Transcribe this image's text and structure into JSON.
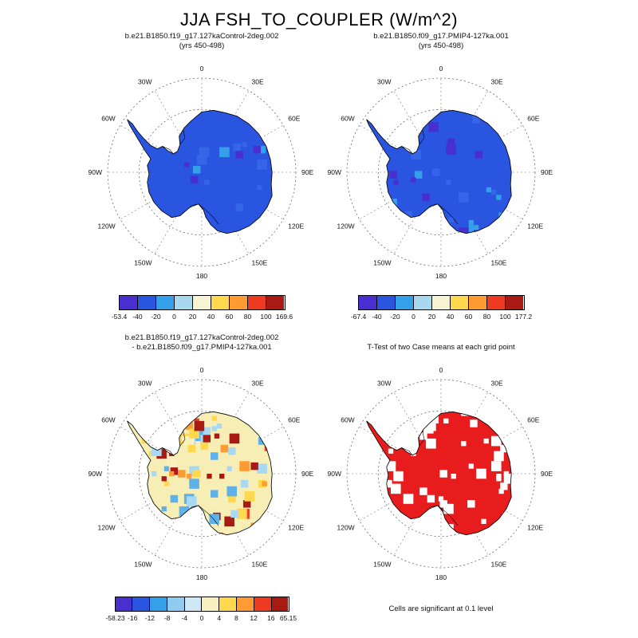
{
  "page_title": "JJA FSH_TO_COUPLER (W/m^2)",
  "compass_labels": [
    "0",
    "30E",
    "60E",
    "90E",
    "120E",
    "150E",
    "180",
    "150W",
    "120W",
    "90W",
    "60W",
    "30W"
  ],
  "panels": [
    {
      "title_line1": "b.e21.B1850.f19_g17.127kaControl-2deg.002",
      "title_line2": "(yrs 450-498)",
      "colorbar": {
        "colors": [
          "#4a2fd0",
          "#2a55e0",
          "#35a0ea",
          "#a8d8f0",
          "#f8f3d2",
          "#ffd84d",
          "#ff9b30",
          "#ee3a20",
          "#aa1a14"
        ],
        "ticks": [
          "-53.4",
          "-40",
          "-20",
          "0",
          "20",
          "40",
          "60",
          "80",
          "100",
          "169.6"
        ]
      },
      "map": {
        "base_fill": "#2a55e0",
        "patch_colors": [
          "#35a0ea",
          "#4a2fd0",
          "#3565e8"
        ],
        "patch_count": 34,
        "seed": 7
      }
    },
    {
      "title_line1": "b.e21.B1850.f09_g17.PMIP4-127ka.001",
      "title_line2": "(yrs 450-498)",
      "colorbar": {
        "colors": [
          "#4a2fd0",
          "#2a55e0",
          "#35a0ea",
          "#a8d8f0",
          "#f8f3d2",
          "#ffd84d",
          "#ff9b30",
          "#ee3a20",
          "#aa1a14"
        ],
        "ticks": [
          "-67.4",
          "-40",
          "-20",
          "0",
          "20",
          "40",
          "60",
          "80",
          "100",
          "177.2"
        ]
      },
      "map": {
        "base_fill": "#2a55e0",
        "patch_colors": [
          "#35a0ea",
          "#4a2fd0",
          "#3565e8"
        ],
        "patch_count": 40,
        "seed": 11
      }
    },
    {
      "title_line1": "b.e21.B1850.f19_g17.127kaControl-2deg.002",
      "title_line2": "- b.e21.B1850.f09_g17.PMIP4-127ka.001",
      "colorbar": {
        "colors": [
          "#4a2fd0",
          "#2a55e0",
          "#35a0ea",
          "#8fccf0",
          "#cfe8f6",
          "#f8f0c0",
          "#ffd84d",
          "#ff9b30",
          "#ee3a20",
          "#aa1a14"
        ],
        "ticks": [
          "-58.23",
          "-16",
          "-12",
          "-8",
          "-4",
          "0",
          "4",
          "8",
          "12",
          "16",
          "65.15"
        ]
      },
      "map": {
        "base_fill": "#f6eeb4",
        "patch_colors": [
          "#a9d8f2",
          "#a9d8f2",
          "#5fb1ea",
          "#ffd84d",
          "#ffd84d",
          "#ff9b30",
          "#ee3a20",
          "#aa1a14",
          "#f8f0c0"
        ],
        "patch_count": 120,
        "seed": 23
      }
    },
    {
      "title_line1": "",
      "title_line2": "T-Test of two Case means at each grid point",
      "caption": "Cells are significant at 0.1 level",
      "map": {
        "base_fill": "#e81c1c",
        "patch_colors": [
          "#ffffff"
        ],
        "patch_count": 70,
        "seed": 41
      }
    }
  ],
  "chart_data": [
    {
      "type": "heatmap",
      "subtype": "filled-contour polar stereographic map",
      "projection": "south polar stereographic",
      "region": "Antarctica",
      "variable": "FSH_TO_COUPLER",
      "season": "JJA",
      "units": "W/m^2",
      "title": "b.e21.B1850.f19_g17.127kaControl-2deg.002 (yrs 450-498)",
      "contour_levels": [
        -40,
        -20,
        0,
        20,
        40,
        60,
        80,
        100
      ],
      "value_range": [
        -53.4,
        169.6
      ],
      "palette": [
        "#4a2fd0",
        "#2a55e0",
        "#35a0ea",
        "#a8d8f0",
        "#f8f3d2",
        "#ffd84d",
        "#ff9b30",
        "#ee3a20",
        "#aa1a14"
      ],
      "summary": "Continent almost entirely in the -40 to -20 W/m^2 bin (blue) with scattered -20 to 0 cells"
    },
    {
      "type": "heatmap",
      "subtype": "filled-contour polar stereographic map",
      "projection": "south polar stereographic",
      "region": "Antarctica",
      "variable": "FSH_TO_COUPLER",
      "season": "JJA",
      "units": "W/m^2",
      "title": "b.e21.B1850.f09_g17.PMIP4-127ka.001 (yrs 450-498)",
      "contour_levels": [
        -40,
        -20,
        0,
        20,
        40,
        60,
        80,
        100
      ],
      "value_range": [
        -67.4,
        177.2
      ],
      "palette": [
        "#4a2fd0",
        "#2a55e0",
        "#35a0ea",
        "#a8d8f0",
        "#f8f3d2",
        "#ffd84d",
        "#ff9b30",
        "#ee3a20",
        "#aa1a14"
      ],
      "summary": "Continent almost entirely in the -40 to -20 W/m^2 bin (blue) with scattered -20 to 0 cells"
    },
    {
      "type": "heatmap",
      "subtype": "difference map",
      "projection": "south polar stereographic",
      "region": "Antarctica",
      "variable": "FSH_TO_COUPLER difference",
      "season": "JJA",
      "units": "W/m^2",
      "title": "b.e21.B1850.f19_g17.127kaControl-2deg.002 - b.e21.B1850.f09_g17.PMIP4-127ka.001",
      "contour_levels": [
        -16,
        -12,
        -8,
        -4,
        0,
        4,
        8,
        12,
        16
      ],
      "value_range": [
        -58.23,
        65.15
      ],
      "palette": [
        "#4a2fd0",
        "#2a55e0",
        "#35a0ea",
        "#8fccf0",
        "#cfe8f6",
        "#f8f0c0",
        "#ffd84d",
        "#ff9b30",
        "#ee3a20",
        "#aa1a14"
      ],
      "summary": "Differences mostly 0 to 4 (pale yellow) with scattered negative (light blue) cells and positive (yellow/orange/red) cells"
    },
    {
      "type": "heatmap",
      "subtype": "significance mask",
      "projection": "south polar stereographic",
      "region": "Antarctica",
      "title": "T-Test of two Case means at each grid point",
      "legend_note": "Cells are significant at 0.1 level",
      "palette": [
        "#e81c1c",
        "#ffffff"
      ],
      "summary": "Most of the continent significant (red); scattered non-significant cells (white)"
    }
  ]
}
